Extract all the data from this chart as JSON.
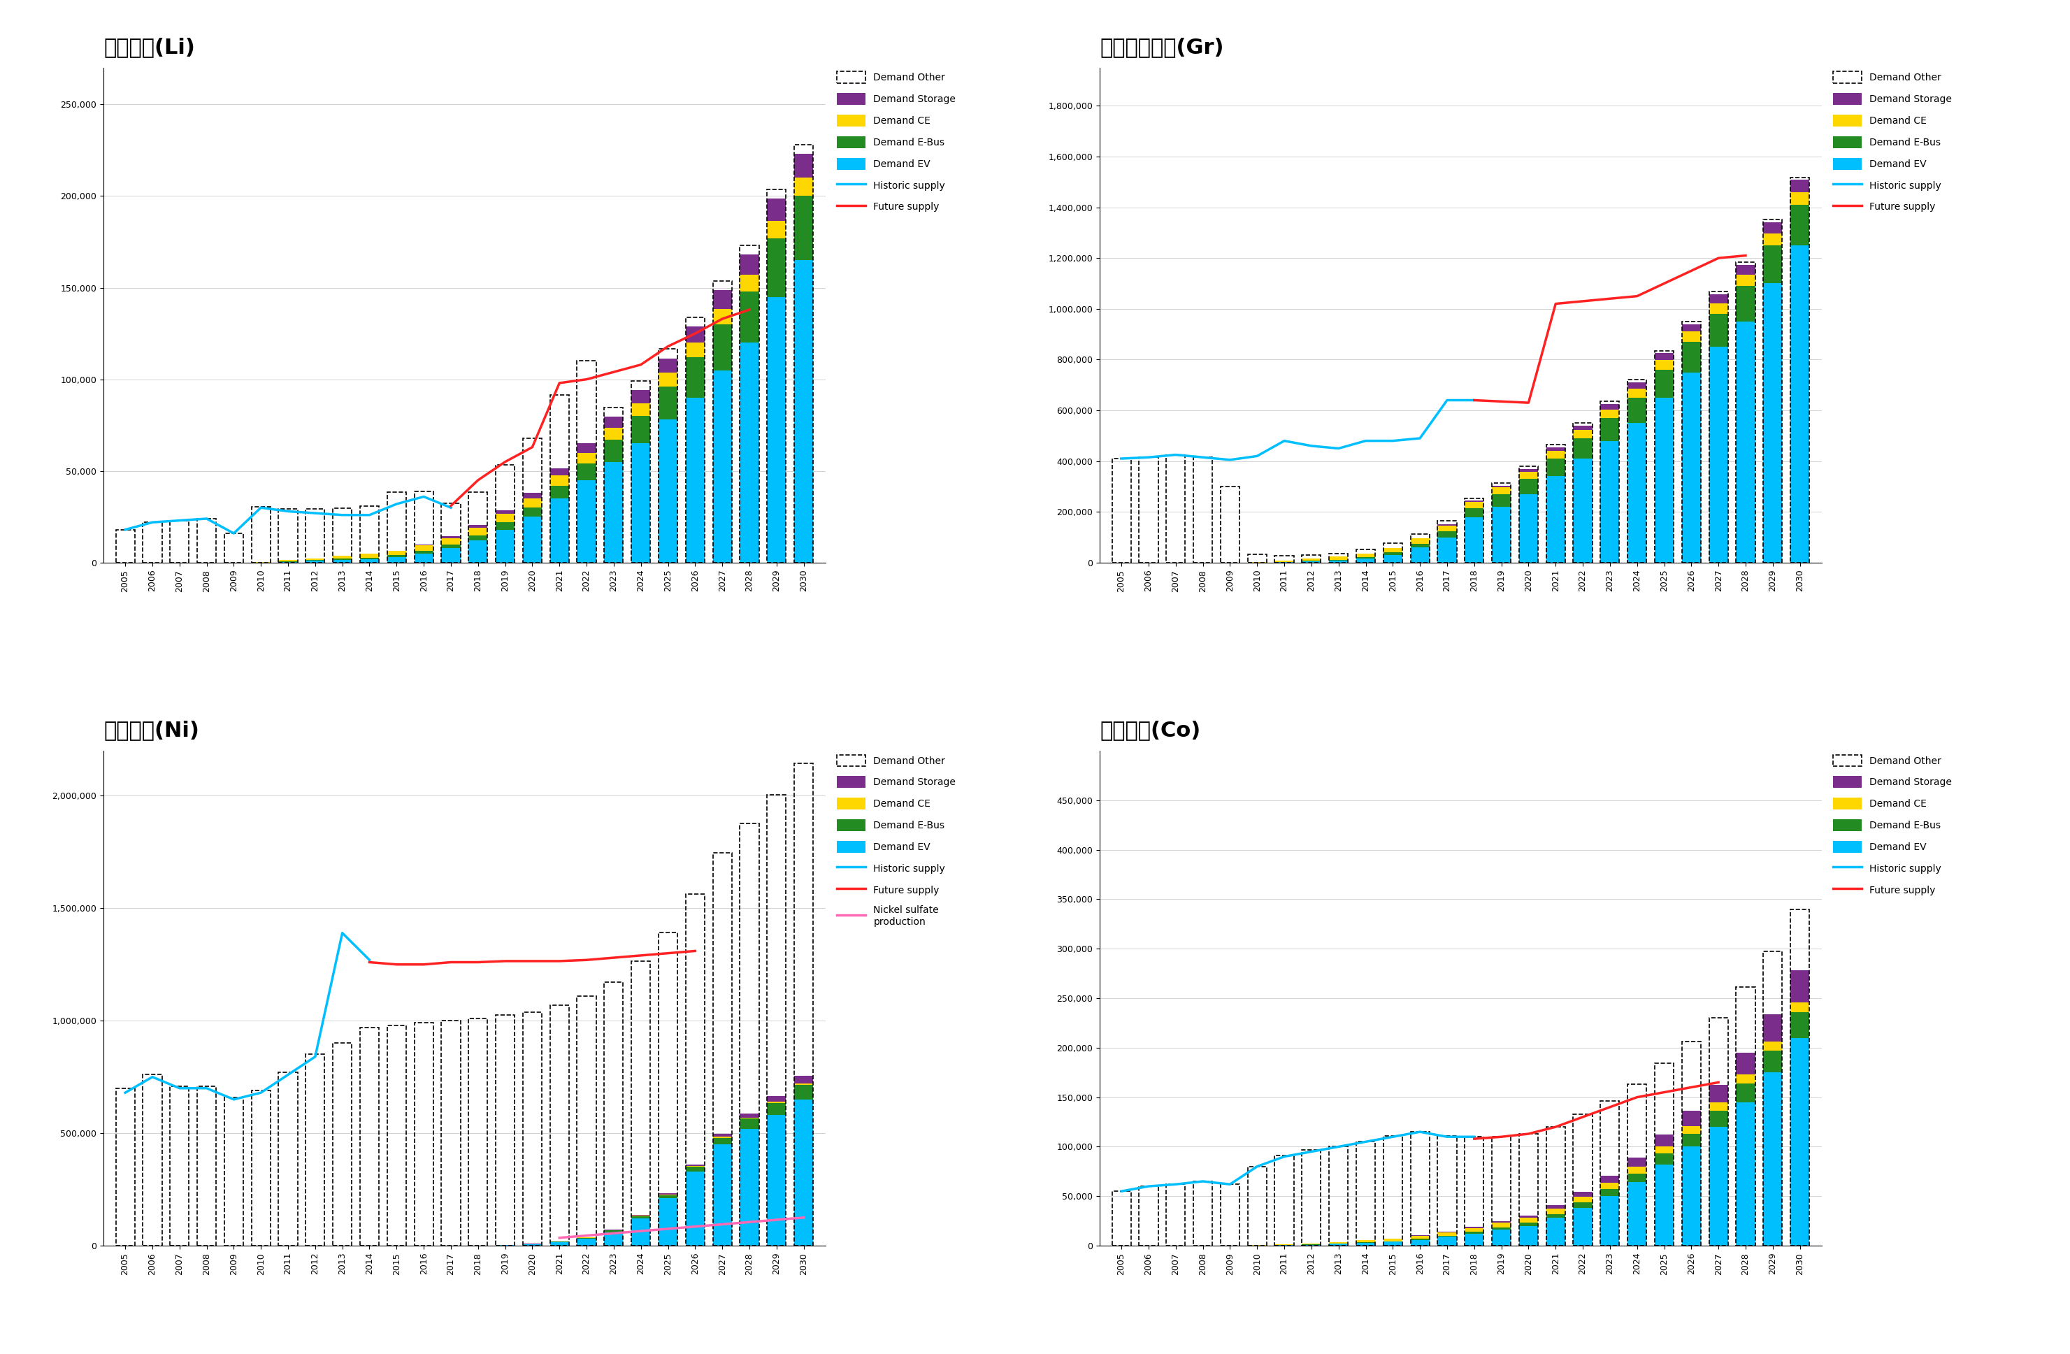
{
  "years": [
    2005,
    2006,
    2007,
    2008,
    2009,
    2010,
    2011,
    2012,
    2013,
    2014,
    2015,
    2016,
    2017,
    2018,
    2019,
    2020,
    2021,
    2022,
    2023,
    2024,
    2025,
    2026,
    2027,
    2028,
    2029,
    2030
  ],
  "li": {
    "title": "リチウム(Li)",
    "ylim": [
      0,
      270000
    ],
    "yticks": [
      0,
      50000,
      100000,
      150000,
      200000,
      250000
    ],
    "historic_supply": [
      18000,
      22000,
      23000,
      24000,
      16000,
      30000,
      28000,
      27000,
      26000,
      26000,
      32000,
      36000,
      30000,
      null,
      null,
      null,
      null,
      null,
      null,
      null,
      null,
      null,
      null,
      null,
      null,
      null
    ],
    "future_supply": [
      null,
      null,
      null,
      null,
      null,
      null,
      null,
      null,
      null,
      null,
      null,
      null,
      31000,
      45000,
      55000,
      63000,
      98000,
      100000,
      104000,
      108000,
      118000,
      125000,
      133000,
      138000,
      null,
      null
    ],
    "demand_EV": [
      0,
      0,
      0,
      0,
      0,
      0,
      500,
      1000,
      1500,
      2000,
      3000,
      5000,
      8000,
      12000,
      18000,
      25000,
      35000,
      45000,
      55000,
      65000,
      78000,
      90000,
      105000,
      120000,
      145000,
      165000
    ],
    "demand_ebus": [
      0,
      0,
      0,
      0,
      0,
      0,
      200,
      400,
      600,
      800,
      1000,
      1500,
      2000,
      3000,
      4000,
      5000,
      7000,
      9000,
      12000,
      15000,
      18000,
      22000,
      25000,
      28000,
      32000,
      35000
    ],
    "demand_ce": [
      0,
      0,
      0,
      0,
      0,
      500,
      800,
      1000,
      1500,
      2000,
      2500,
      3000,
      3500,
      4000,
      4500,
      5000,
      5500,
      6000,
      6500,
      7000,
      7500,
      8000,
      8500,
      9000,
      9500,
      10000
    ],
    "demand_storage": [
      0,
      0,
      0,
      0,
      0,
      0,
      0,
      0,
      0,
      0,
      0,
      500,
      1000,
      1500,
      2000,
      3000,
      4000,
      5000,
      6000,
      7000,
      8000,
      9000,
      10000,
      11000,
      12000,
      13000
    ],
    "demand_other": [
      18000,
      22000,
      23000,
      24000,
      16000,
      30000,
      28000,
      27000,
      26000,
      26000,
      32000,
      29000,
      18000,
      18000,
      25000,
      30000,
      40000,
      45000,
      5000,
      5000,
      5000,
      5000,
      5000,
      5000,
      5000,
      5000
    ]
  },
  "gr": {
    "title": "グラファイト(Gr)",
    "ylim": [
      0,
      1950000
    ],
    "yticks": [
      0,
      200000,
      400000,
      600000,
      800000,
      1000000,
      1200000,
      1400000,
      1600000,
      1800000
    ],
    "historic_supply": [
      410000,
      415000,
      425000,
      415000,
      405000,
      420000,
      480000,
      460000,
      450000,
      480000,
      480000,
      490000,
      640000,
      640000,
      null,
      null,
      null,
      null,
      null,
      null,
      null,
      null,
      null,
      null,
      null,
      null
    ],
    "future_supply": [
      null,
      null,
      null,
      null,
      null,
      null,
      null,
      null,
      null,
      null,
      null,
      null,
      null,
      640000,
      635000,
      630000,
      1020000,
      1030000,
      1040000,
      1050000,
      1100000,
      1150000,
      1200000,
      1210000,
      null,
      null
    ],
    "demand_EV": [
      0,
      0,
      0,
      0,
      0,
      0,
      2000,
      5000,
      8000,
      15000,
      30000,
      60000,
      100000,
      180000,
      220000,
      270000,
      340000,
      410000,
      480000,
      550000,
      650000,
      750000,
      850000,
      950000,
      1100000,
      1250000
    ],
    "demand_ebus": [
      0,
      0,
      0,
      0,
      0,
      0,
      1000,
      2000,
      4000,
      6000,
      10000,
      15000,
      25000,
      35000,
      50000,
      60000,
      70000,
      80000,
      90000,
      100000,
      110000,
      120000,
      130000,
      140000,
      150000,
      160000
    ],
    "demand_ce": [
      0,
      0,
      0,
      0,
      0,
      2000,
      5000,
      8000,
      12000,
      15000,
      18000,
      20000,
      22000,
      24000,
      26000,
      28000,
      30000,
      32000,
      34000,
      36000,
      38000,
      40000,
      42000,
      44000,
      46000,
      48000
    ],
    "demand_storage": [
      0,
      0,
      0,
      0,
      0,
      0,
      0,
      0,
      0,
      0,
      0,
      1000,
      3000,
      5000,
      8000,
      12000,
      15000,
      18000,
      21000,
      24000,
      27000,
      30000,
      35000,
      40000,
      45000,
      50000
    ],
    "demand_other": [
      410000,
      415000,
      425000,
      415000,
      300000,
      30000,
      18000,
      15000,
      12000,
      15000,
      20000,
      18000,
      15000,
      10000,
      10000,
      10000,
      10000,
      10000,
      10000,
      10000,
      10000,
      10000,
      10000,
      10000,
      10000,
      10000
    ]
  },
  "ni": {
    "title": "ニッケル(Ni)",
    "ylim": [
      0,
      2200000
    ],
    "yticks": [
      0,
      500000,
      1000000,
      1500000,
      2000000
    ],
    "historic_supply": [
      680000,
      750000,
      700000,
      700000,
      650000,
      680000,
      760000,
      840000,
      1390000,
      1270000,
      null,
      null,
      null,
      null,
      null,
      null,
      null,
      null,
      null,
      null,
      null,
      null,
      null,
      null,
      null,
      null
    ],
    "future_supply": [
      null,
      null,
      null,
      null,
      null,
      null,
      null,
      null,
      null,
      1260000,
      1250000,
      1250000,
      1260000,
      1260000,
      1265000,
      1265000,
      1265000,
      1270000,
      1280000,
      1290000,
      1300000,
      1310000,
      null,
      null,
      null,
      null
    ],
    "demand_EV": [
      0,
      0,
      0,
      0,
      0,
      0,
      0,
      0,
      0,
      0,
      0,
      0,
      0,
      0,
      2000,
      5000,
      15000,
      30000,
      60000,
      120000,
      210000,
      330000,
      450000,
      520000,
      580000,
      650000
    ],
    "demand_ebus": [
      0,
      0,
      0,
      0,
      0,
      0,
      0,
      0,
      0,
      0,
      0,
      0,
      0,
      0,
      1000,
      2000,
      3000,
      5000,
      7000,
      10000,
      15000,
      20000,
      30000,
      45000,
      55000,
      65000
    ],
    "demand_ce": [
      0,
      0,
      0,
      0,
      0,
      0,
      0,
      0,
      0,
      0,
      0,
      0,
      0,
      0,
      500,
      800,
      1000,
      1500,
      2000,
      2500,
      3000,
      3500,
      4000,
      4500,
      5000,
      5500
    ],
    "demand_storage": [
      0,
      0,
      0,
      0,
      0,
      0,
      0,
      0,
      0,
      0,
      0,
      0,
      0,
      0,
      500,
      800,
      1200,
      1800,
      2500,
      3500,
      5000,
      8000,
      12000,
      18000,
      25000,
      35000
    ],
    "demand_other": [
      700000,
      760000,
      710000,
      710000,
      660000,
      690000,
      770000,
      850000,
      900000,
      970000,
      980000,
      990000,
      1000000,
      1010000,
      1020000,
      1030000,
      1050000,
      1070000,
      1100000,
      1130000,
      1160000,
      1200000,
      1250000,
      1290000,
      1340000,
      1390000
    ],
    "nickel_sulfate": [
      null,
      null,
      null,
      null,
      null,
      null,
      null,
      null,
      null,
      null,
      null,
      null,
      null,
      null,
      null,
      null,
      35000,
      45000,
      55000,
      65000,
      75000,
      85000,
      95000,
      105000,
      115000,
      125000
    ]
  },
  "co": {
    "title": "コバルト(Co)",
    "ylim": [
      0,
      500000
    ],
    "yticks": [
      0,
      50000,
      100000,
      150000,
      200000,
      250000,
      300000,
      350000,
      400000,
      450000
    ],
    "historic_supply": [
      55000,
      60000,
      62000,
      65000,
      62000,
      80000,
      90000,
      95000,
      100000,
      105000,
      110000,
      115000,
      110000,
      110000,
      null,
      null,
      null,
      null,
      null,
      null,
      null,
      null,
      null,
      null,
      null,
      null
    ],
    "future_supply": [
      null,
      null,
      null,
      null,
      null,
      null,
      null,
      null,
      null,
      null,
      null,
      null,
      null,
      108000,
      110000,
      113000,
      120000,
      130000,
      140000,
      150000,
      155000,
      160000,
      165000,
      null,
      null,
      null
    ],
    "demand_EV": [
      0,
      0,
      0,
      0,
      0,
      0,
      500,
      1000,
      2000,
      3000,
      4000,
      6000,
      9000,
      12000,
      16000,
      20000,
      28000,
      38000,
      50000,
      64000,
      82000,
      100000,
      120000,
      145000,
      175000,
      210000
    ],
    "demand_ebus": [
      0,
      0,
      0,
      0,
      0,
      0,
      100,
      200,
      300,
      400,
      600,
      900,
      1200,
      1800,
      2500,
      3000,
      4000,
      5500,
      7000,
      9000,
      11000,
      13000,
      16000,
      19000,
      22000,
      26000
    ],
    "demand_ce": [
      0,
      0,
      0,
      0,
      0,
      500,
      800,
      1000,
      1500,
      2000,
      2500,
      3000,
      3500,
      4000,
      4500,
      5000,
      5500,
      6000,
      6500,
      7000,
      7500,
      8000,
      8500,
      9000,
      9500,
      10000
    ],
    "demand_storage": [
      0,
      0,
      0,
      0,
      0,
      0,
      0,
      0,
      0,
      0,
      0,
      500,
      800,
      1200,
      1800,
      2500,
      3500,
      5000,
      7000,
      9000,
      12000,
      15000,
      18000,
      22000,
      27000,
      32000
    ],
    "demand_other": [
      55000,
      60000,
      62000,
      65000,
      62000,
      79500,
      89600,
      94800,
      96200,
      99600,
      103900,
      104600,
      96500,
      91000,
      85200,
      82500,
      79000,
      78000,
      76000,
      74000,
      72000,
      70000,
      68000,
      66000,
      64000,
      62000
    ]
  },
  "colors": {
    "demand_EV": "#00BFFF",
    "demand_ebus": "#228B22",
    "demand_ce": "#FFD700",
    "demand_storage": "#7B2D8B",
    "historic_supply": "#00BFFF",
    "future_supply": "#FF2222",
    "nickel_sulfate": "#FF69B4"
  }
}
